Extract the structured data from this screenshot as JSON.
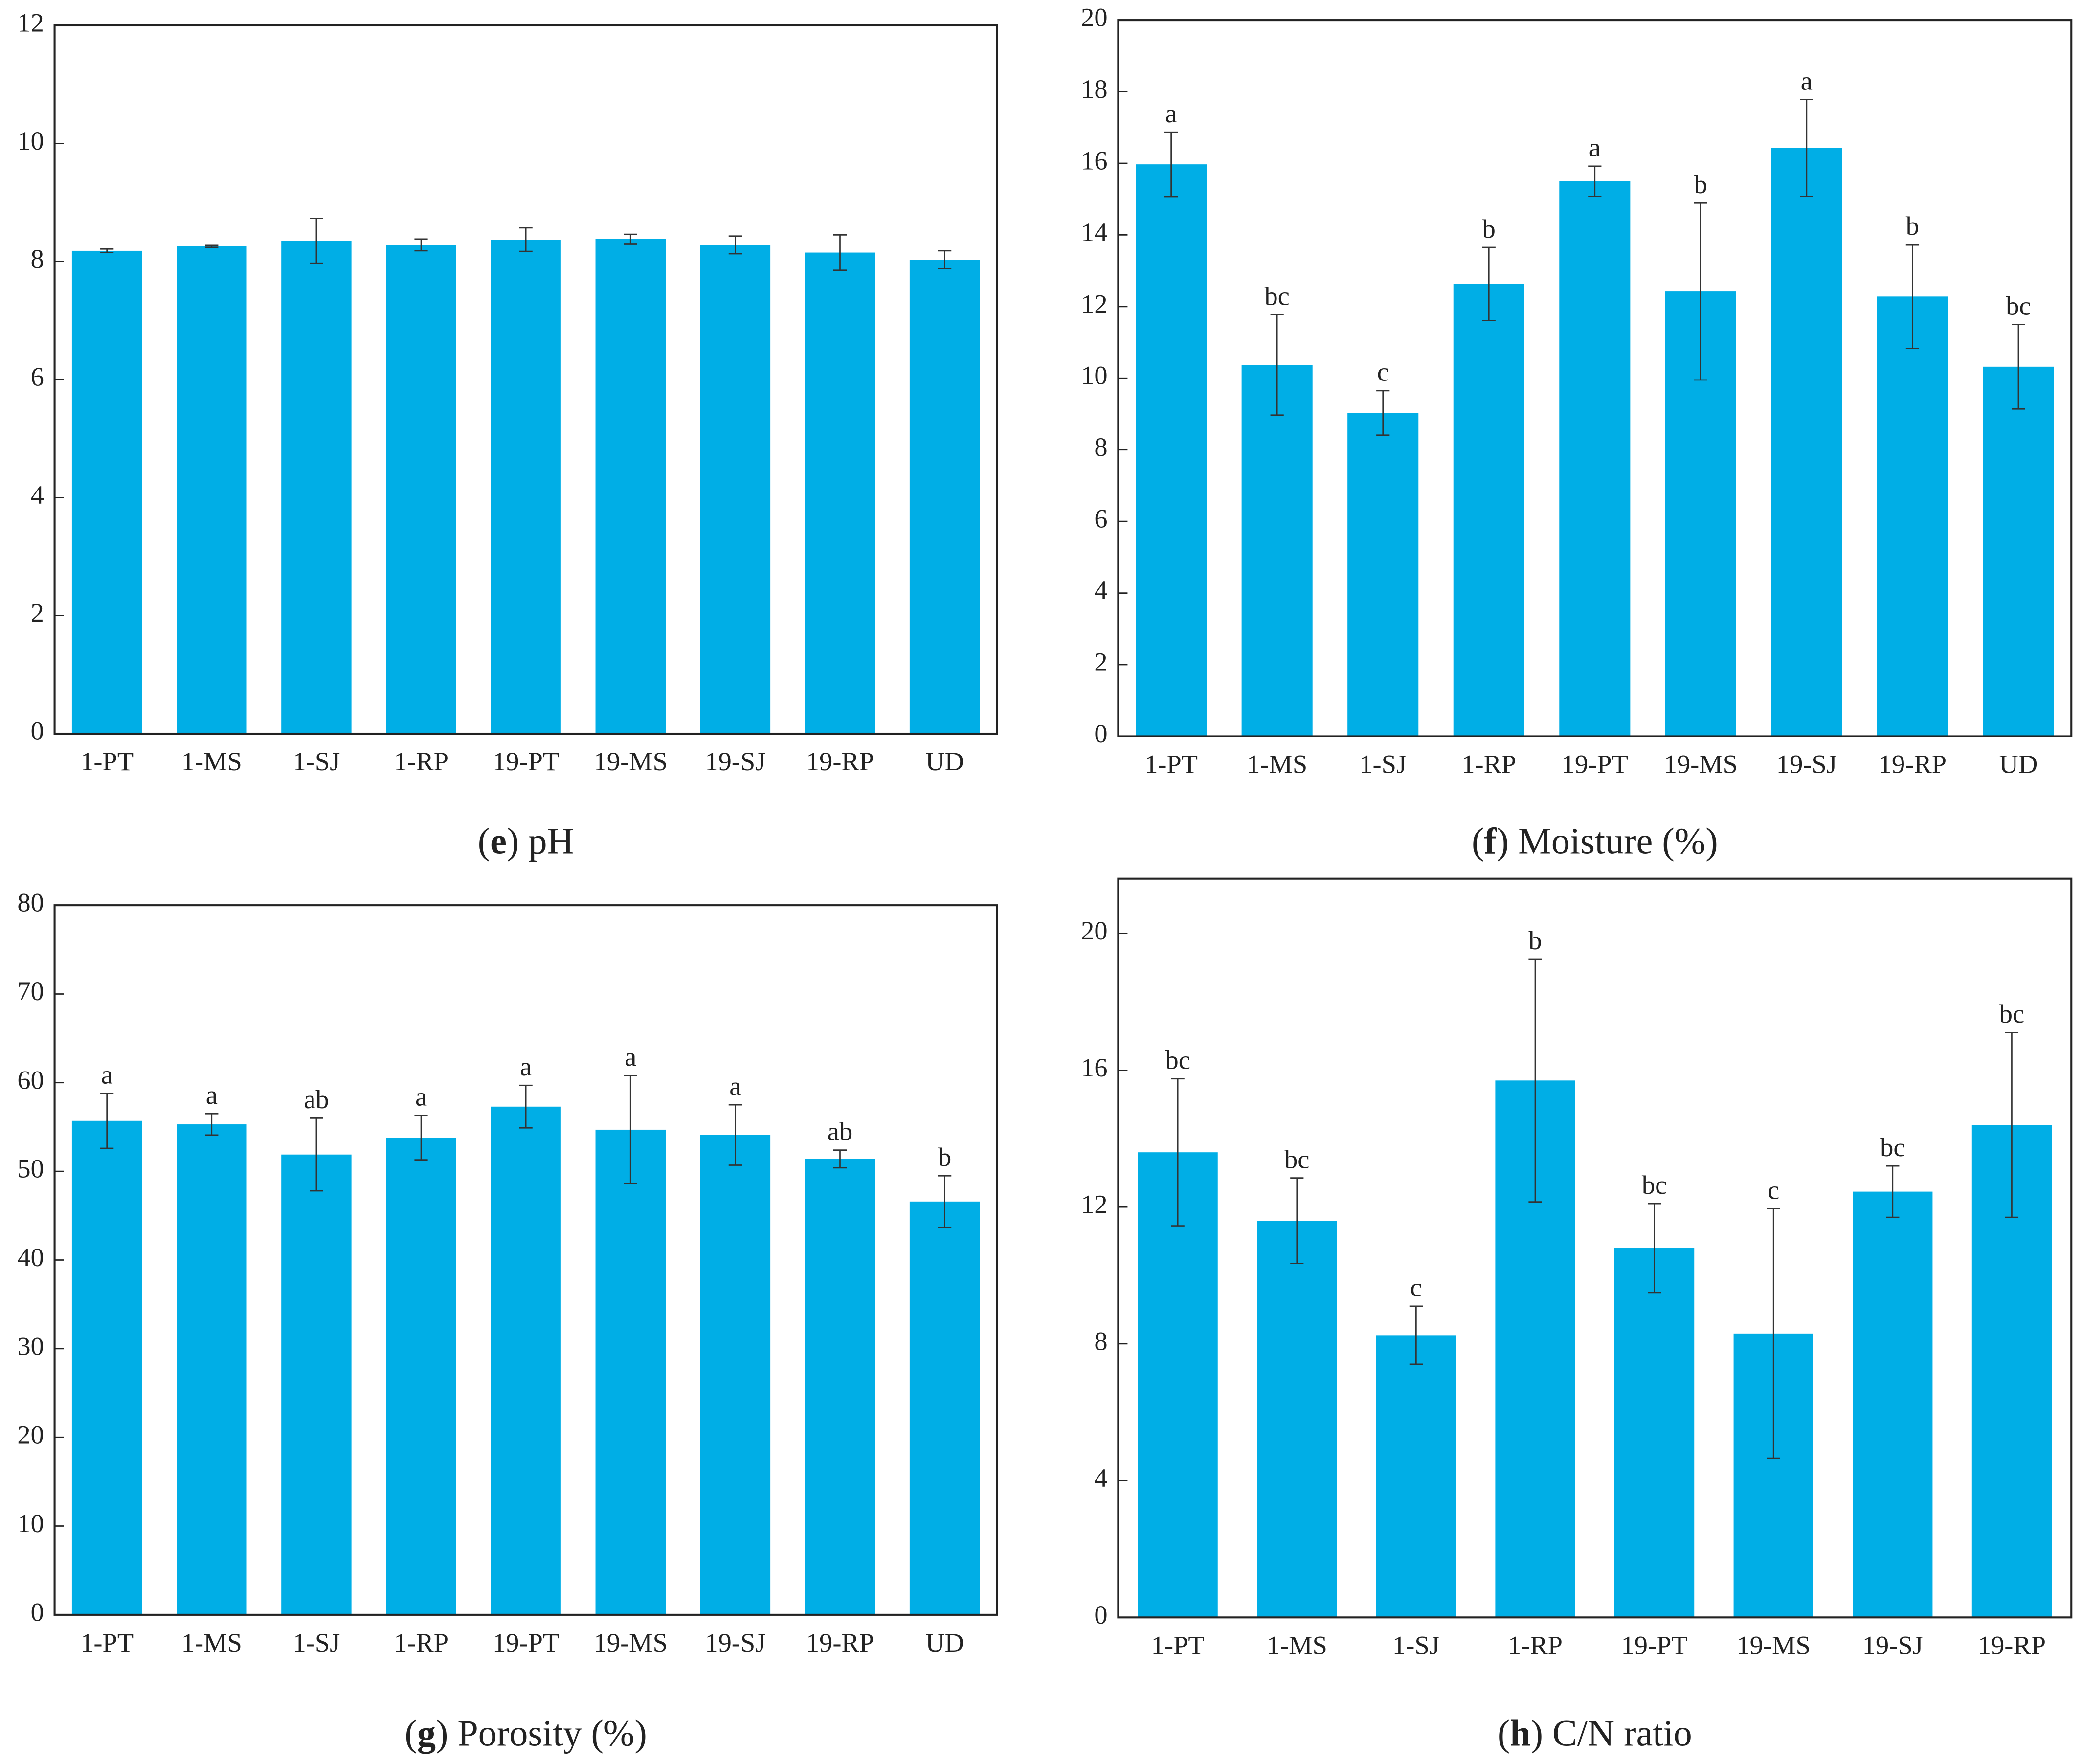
{
  "chart_data": [
    {
      "type": "bar",
      "caption": "(e) pH",
      "categories": [
        "1-PT",
        "1-MS",
        "1-SJ",
        "1-RP",
        "19-PT",
        "19-MS",
        "19-SJ",
        "19-RP",
        "UD"
      ],
      "values": [
        8.18,
        8.26,
        8.35,
        8.28,
        8.37,
        8.38,
        8.28,
        8.15,
        8.03
      ],
      "errors": [
        0.03,
        0.02,
        0.38,
        0.1,
        0.2,
        0.08,
        0.15,
        0.3,
        0.15
      ],
      "color": "#00aee6",
      "ylim": [
        0,
        12
      ],
      "yticks": [
        0,
        2,
        4,
        6,
        8,
        10,
        12
      ]
    },
    {
      "type": "bar",
      "caption": "(f) Moisture (%)",
      "categories": [
        "1-PT",
        "1-MS",
        "1-SJ",
        "1-RP",
        "19-PT",
        "19-MS",
        "19-SJ",
        "19-RP",
        "UD"
      ],
      "values": [
        15.97,
        10.37,
        9.03,
        12.63,
        15.5,
        12.42,
        16.43,
        12.28,
        10.32
      ],
      "errors": [
        0.9,
        1.4,
        0.62,
        1.02,
        0.42,
        2.47,
        1.35,
        1.45,
        1.18
      ],
      "letters": [
        "a",
        "bc",
        "c",
        "b",
        "a",
        "b",
        "a",
        "b",
        "bc"
      ],
      "color": "#00aee6",
      "ylim": [
        0,
        20
      ],
      "yticks": [
        0,
        2,
        4,
        6,
        8,
        10,
        12,
        14,
        16,
        18,
        20
      ]
    },
    {
      "type": "bar",
      "caption": "(g) Porosity (%)",
      "categories": [
        "1-PT",
        "1-MS",
        "1-SJ",
        "1-RP",
        "19-PT",
        "19-MS",
        "19-SJ",
        "19-RP",
        "UD"
      ],
      "values": [
        55.7,
        55.3,
        51.9,
        53.8,
        57.3,
        54.7,
        54.1,
        51.4,
        46.6
      ],
      "errors": [
        3.1,
        1.2,
        4.1,
        2.5,
        2.4,
        6.1,
        3.4,
        1.0,
        2.9
      ],
      "letters": [
        "a",
        "a",
        "ab",
        "a",
        "a",
        "a",
        "a",
        "ab",
        "b"
      ],
      "color": "#00aee6",
      "ylim": [
        0,
        80
      ],
      "yticks": [
        0,
        10,
        20,
        30,
        40,
        50,
        60,
        70,
        80
      ]
    },
    {
      "type": "bar",
      "caption": "(h) C/N ratio",
      "categories": [
        "1-PT",
        "1-MS",
        "1-SJ",
        "1-RP",
        "19-PT",
        "19-MS",
        "19-SJ",
        "19-RP"
      ],
      "values": [
        13.6,
        11.6,
        8.25,
        15.7,
        10.8,
        8.3,
        12.45,
        14.4
      ],
      "errors": [
        2.15,
        1.25,
        0.85,
        3.55,
        1.3,
        3.65,
        0.75,
        2.7
      ],
      "letters": [
        "bc",
        "bc",
        "c",
        "b",
        "bc",
        "c",
        "bc",
        "bc"
      ],
      "color": "#00aee6",
      "ylim": [
        0,
        21.6
      ],
      "yticks": [
        0,
        4,
        8,
        12,
        16,
        20
      ]
    }
  ]
}
